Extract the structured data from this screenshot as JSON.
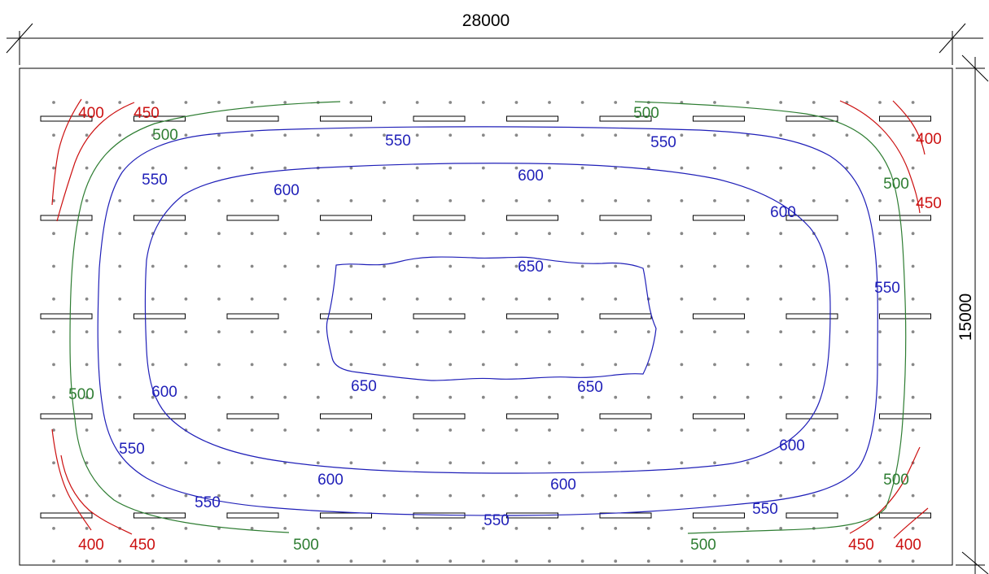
{
  "dimensions": {
    "width_label": "28000",
    "height_label": "15000"
  },
  "colors": {
    "lux_400": "#cc1111",
    "lux_450": "#cc1111",
    "lux_500": "#2e7d32",
    "lux_550": "#1f1fb8",
    "lux_600": "#1f1fb8",
    "lux_650": "#1f1fb8",
    "grid_point": "#888888",
    "luminaire": "#000000"
  },
  "luminaire_grid": {
    "columns": 10,
    "rows": 5
  },
  "measurement_grid": {
    "columns": 27,
    "rows": 15
  },
  "isolines": [
    {
      "value": "400",
      "color_key": "lux_400",
      "curves": [
        {
          "id": "tl",
          "labels": [
            [
              "400",
              112,
              145
            ]
          ]
        },
        {
          "id": "tr",
          "labels": [
            [
              "400",
              1141,
              177
            ]
          ]
        },
        {
          "id": "bl",
          "labels": [
            [
              "400",
              112,
              676
            ]
          ]
        },
        {
          "id": "br",
          "labels": [
            [
              "400",
              1116,
              676
            ]
          ]
        }
      ]
    },
    {
      "value": "450",
      "color_key": "lux_450",
      "curves": [
        {
          "id": "tl",
          "labels": [
            [
              "450",
              180,
              145
            ]
          ]
        },
        {
          "id": "tr",
          "labels": [
            [
              "450",
              1141,
              256
            ]
          ]
        },
        {
          "id": "bl",
          "labels": [
            [
              "450",
              175,
              676
            ]
          ]
        },
        {
          "id": "br",
          "labels": [
            [
              "450",
              1058,
              676
            ]
          ]
        }
      ]
    },
    {
      "value": "500",
      "color_key": "lux_500",
      "curves": [
        {
          "id": "top-left",
          "labels": [
            [
              "500",
              203,
              172
            ],
            [
              "500",
              100,
              491
            ]
          ]
        },
        {
          "id": "top-right",
          "labels": [
            [
              "500",
              794,
              145
            ],
            [
              "500",
              1101,
              232
            ]
          ]
        },
        {
          "id": "bottom-left",
          "labels": [
            [
              "500",
              376,
              676
            ]
          ]
        },
        {
          "id": "bottom-right",
          "labels": [
            [
              "500",
              864,
              676
            ],
            [
              "500",
              1101,
              596
            ]
          ]
        }
      ]
    },
    {
      "value": "550",
      "color_key": "lux_550",
      "curves": [
        {
          "id": "ring",
          "labels": [
            [
              "550",
              489,
              179
            ],
            [
              "550",
              815,
              181
            ],
            [
              "550",
              190,
              227
            ],
            [
              "550",
              1090,
              360
            ],
            [
              "550",
              162,
              558
            ],
            [
              "550",
              255,
              624
            ],
            [
              "550",
              610,
              646
            ],
            [
              "550",
              940,
              632
            ]
          ]
        }
      ]
    },
    {
      "value": "600",
      "color_key": "lux_600",
      "curves": [
        {
          "id": "ring",
          "labels": [
            [
              "600",
              352,
              240
            ],
            [
              "600",
              652,
              222
            ],
            [
              "600",
              962,
              267
            ],
            [
              "600",
              202,
              488
            ],
            [
              "600",
              973,
              554
            ],
            [
              "600",
              406,
              596
            ],
            [
              "600",
              692,
              602
            ]
          ]
        }
      ]
    },
    {
      "value": "650",
      "color_key": "lux_650",
      "curves": [
        {
          "id": "ring",
          "labels": [
            [
              "650",
              652,
              334
            ],
            [
              "650",
              447,
              481
            ],
            [
              "650",
              725,
              482
            ]
          ]
        }
      ]
    }
  ]
}
